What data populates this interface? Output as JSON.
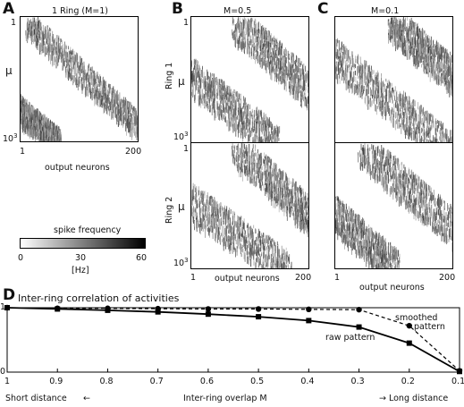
{
  "panels": {
    "A": {
      "letter": "A",
      "title": "1 Ring (M=1)",
      "ylabel": "μ",
      "ytick_top": "1",
      "ytick_bottom": "10",
      "ytick_bottom_exp": "3",
      "xtick_left": "1",
      "xtick_right": "200",
      "xlabel": "output neurons"
    },
    "B": {
      "letter": "B",
      "title": "M=0.5",
      "ring1": "Ring 1",
      "ring2": "Ring 2",
      "ylabel": "μ",
      "ytick_top": "1",
      "ytick_bottom": "10",
      "ytick_bottom_exp": "3",
      "xtick_left": "1",
      "xtick_right": "200",
      "xlabel": "output neurons"
    },
    "C": {
      "letter": "C",
      "title": "M=0.1",
      "xtick_left": "1",
      "xtick_right": "200",
      "xlabel": "output neurons"
    }
  },
  "colorbar": {
    "label": "spike frequency",
    "ticks": [
      "0",
      "30",
      "60"
    ],
    "unit": "[Hz]",
    "colors": {
      "low": "#ffffff",
      "high": "#000000"
    }
  },
  "panelD": {
    "letter": "D",
    "title": "Inter-ring correlation of activities",
    "xlabel": "Inter-ring overlap M",
    "left_note": "Short distance",
    "left_arrow": "←",
    "right_note": "→ Long distance",
    "smoothed_label_1": "smoothed",
    "smoothed_label_2": "pattern",
    "raw_label": "raw pattern",
    "ytick_top": "1",
    "ytick_bottom": "0",
    "xticks": [
      "1",
      "0.9",
      "0.8",
      "0.7",
      "0.6",
      "0.5",
      "0.4",
      "0.3",
      "0.2",
      "0.1"
    ]
  },
  "chart_data": {
    "type": "line",
    "title": "Inter-ring correlation of activities",
    "xlabel": "Inter-ring overlap M",
    "ylabel": "",
    "x": [
      1,
      0.9,
      0.8,
      0.7,
      0.6,
      0.5,
      0.4,
      0.3,
      0.2,
      0.1
    ],
    "xlim": [
      1,
      0.1
    ],
    "ylim": [
      0,
      1
    ],
    "series": [
      {
        "name": "smoothed pattern",
        "style": "dashed",
        "marker": "circle",
        "values": [
          1.0,
          0.99,
          0.99,
          0.985,
          0.98,
          0.98,
          0.975,
          0.97,
          0.72,
          0.02
        ]
      },
      {
        "name": "raw pattern",
        "style": "solid",
        "marker": "square",
        "values": [
          1.0,
          0.98,
          0.96,
          0.935,
          0.9,
          0.86,
          0.8,
          0.7,
          0.45,
          0.01
        ]
      }
    ]
  }
}
